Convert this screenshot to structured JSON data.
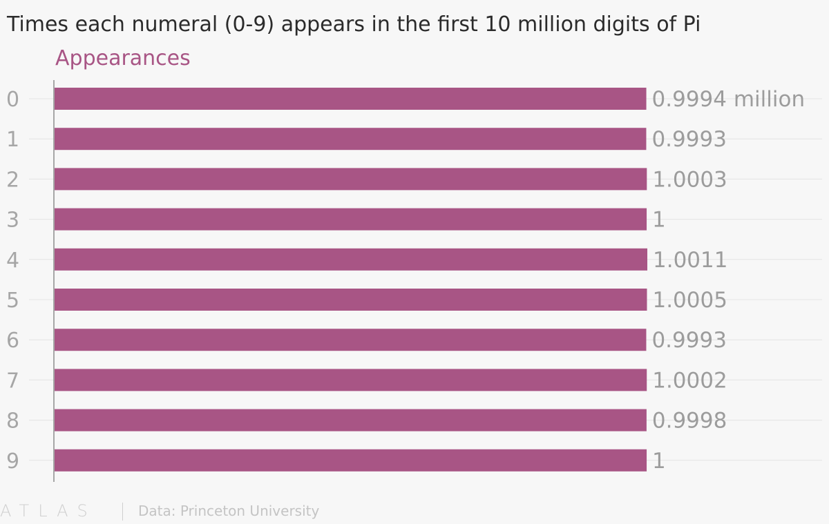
{
  "chart_data": {
    "type": "bar",
    "orientation": "horizontal",
    "title": "Times each numeral (0-9) appears in the first 10 million digits of Pi",
    "series_label": "Appearances",
    "categories": [
      "0",
      "1",
      "2",
      "3",
      "4",
      "5",
      "6",
      "7",
      "8",
      "9"
    ],
    "values": [
      0.9994,
      0.9993,
      1.0003,
      1,
      1.0011,
      1.0005,
      0.9993,
      1.0002,
      0.9998,
      1
    ],
    "value_labels": [
      "0.9994 million",
      "0.9993",
      "1.0003",
      "1",
      "1.0011",
      "1.0005",
      "0.9993",
      "1.0002",
      "0.9998",
      "1"
    ],
    "xlim": [
      0,
      1.0011
    ],
    "grid": true,
    "bar_color": "#a85585",
    "series_label_color": "#a85585"
  },
  "footer": {
    "logo": "ATLAS",
    "source": "Data: Princeton University"
  }
}
